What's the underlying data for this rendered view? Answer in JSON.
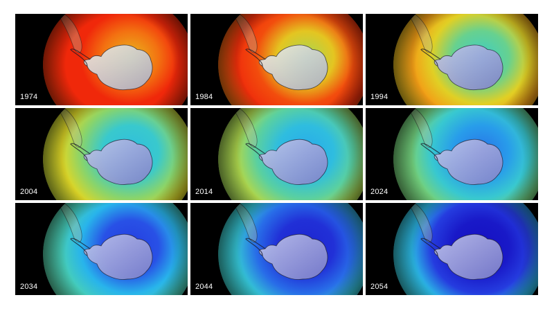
{
  "panels": [
    {
      "year": "1974",
      "ozone_level": 1.0
    },
    {
      "year": "1984",
      "ozone_level": 0.84
    },
    {
      "year": "1994",
      "ozone_level": 0.62
    },
    {
      "year": "2004",
      "ozone_level": 0.5
    },
    {
      "year": "2014",
      "ozone_level": 0.42
    },
    {
      "year": "2024",
      "ozone_level": 0.33
    },
    {
      "year": "2034",
      "ozone_level": 0.22
    },
    {
      "year": "2044",
      "ozone_level": 0.13
    },
    {
      "year": "2054",
      "ozone_level": 0.05
    }
  ],
  "colors": {
    "background": "#ffffff",
    "panel_background": "#000000",
    "label_text": "#ffffff",
    "continent": "#b8bcd6"
  }
}
